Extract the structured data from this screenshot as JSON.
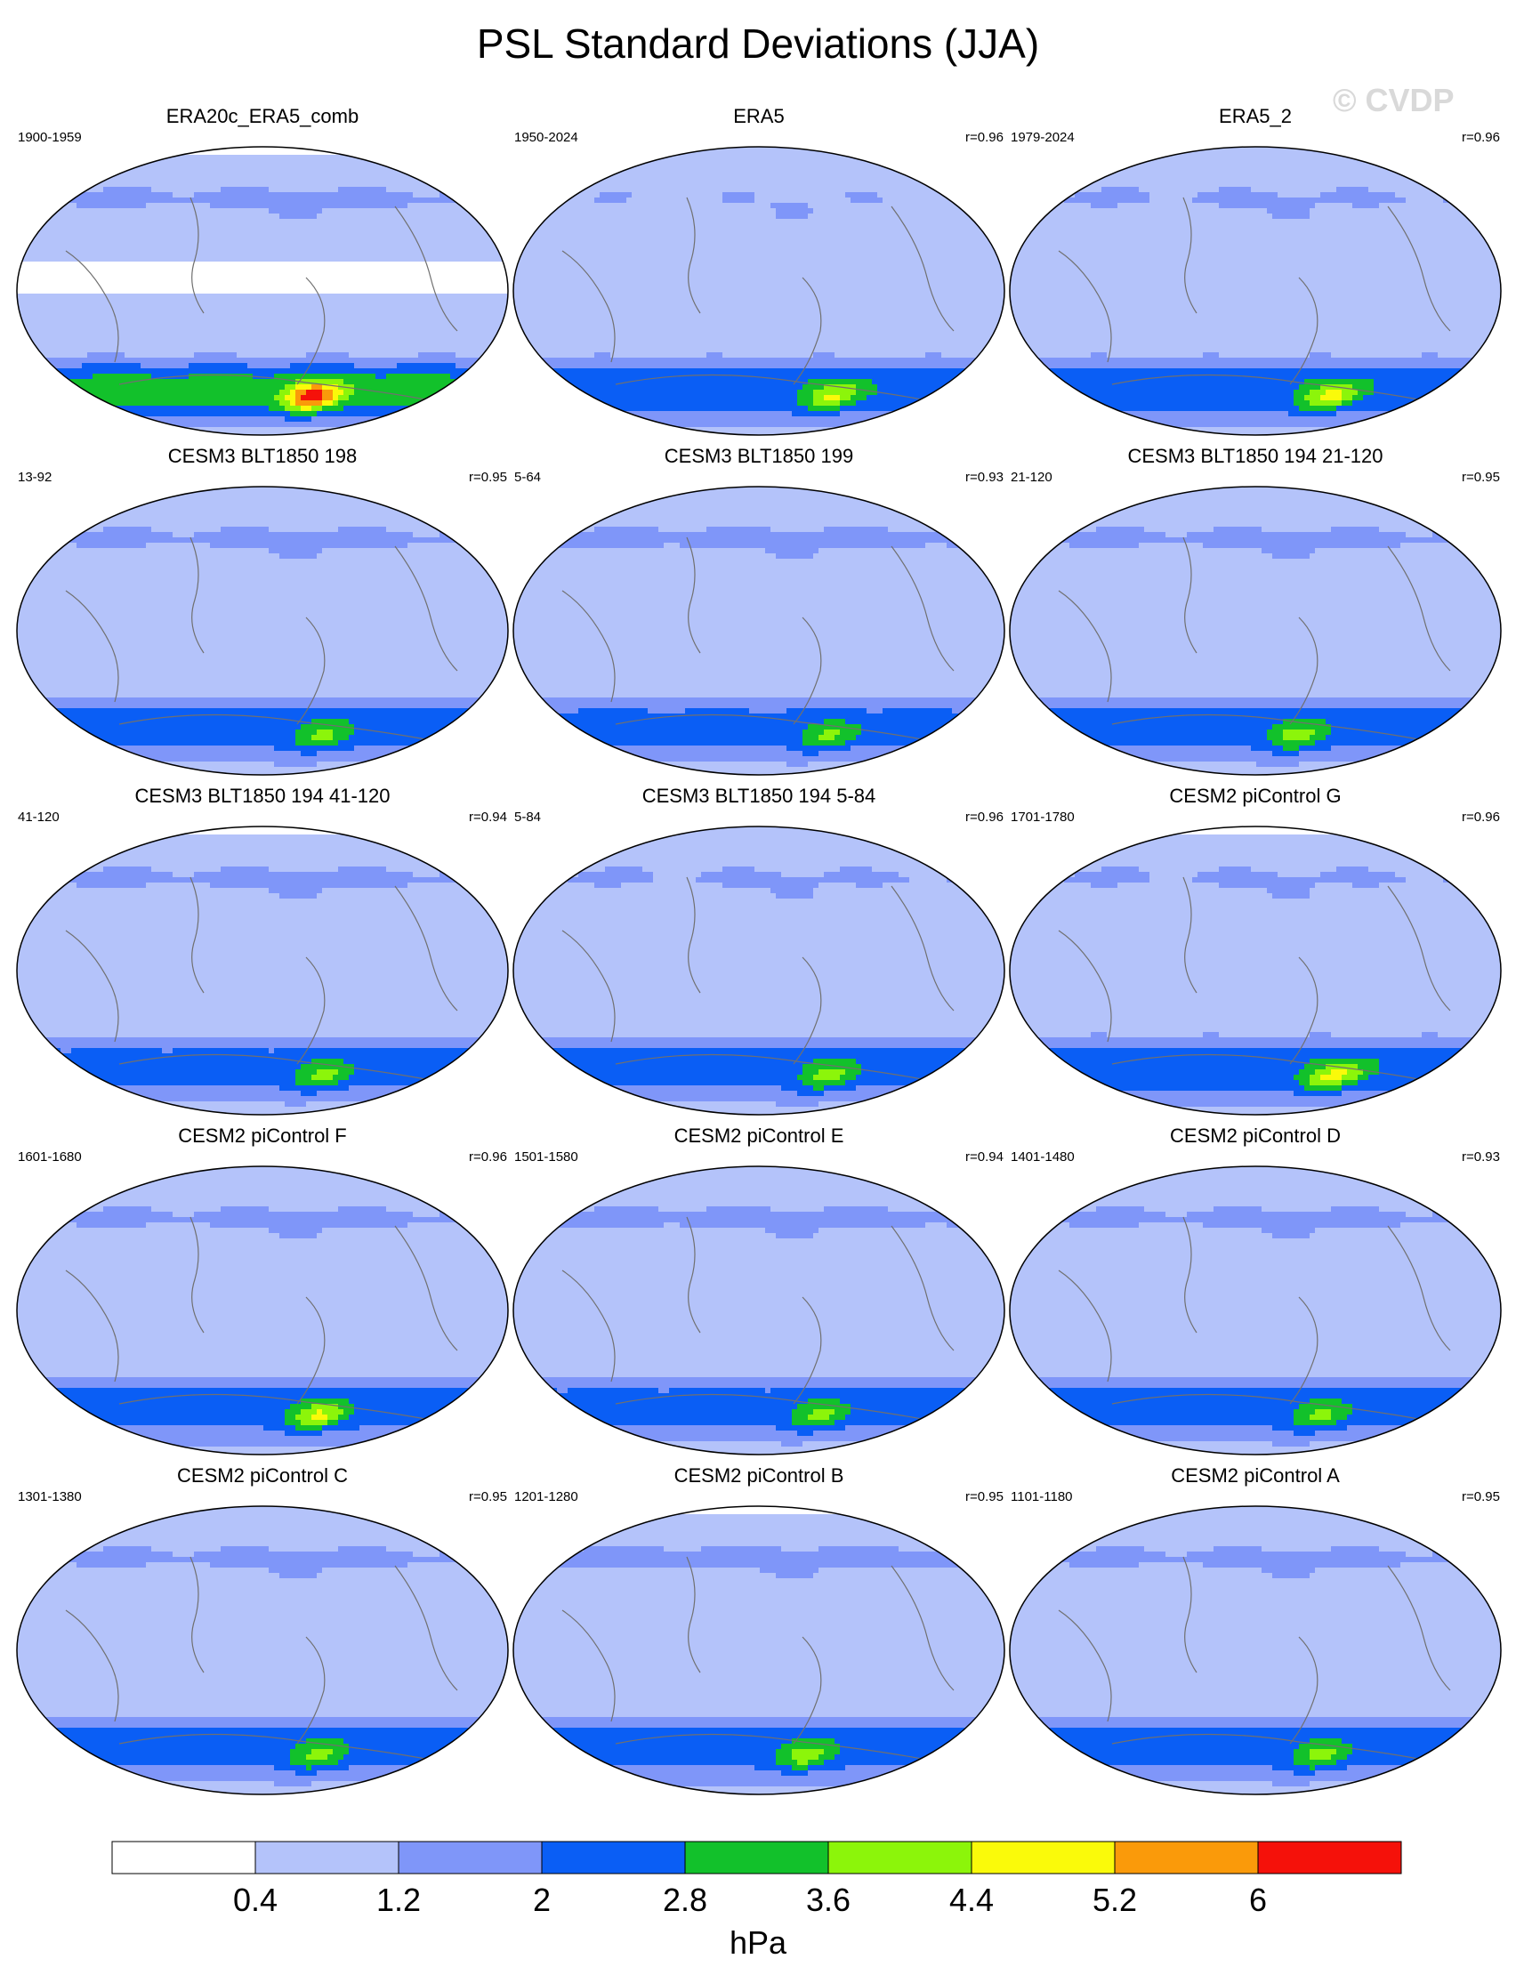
{
  "title": "PSL Standard Deviations (JJA)",
  "watermark": "© CVDP",
  "chart_data": {
    "type": "heatmap",
    "title": "PSL Standard Deviations (JJA)",
    "variable": "PSL standard deviation",
    "season": "JJA",
    "units": "hPa",
    "projection": "global map (Pacific-centered)",
    "colorbar": {
      "levels": [
        0.4,
        1.2,
        2,
        2.8,
        3.6,
        4.4,
        5.2,
        6
      ],
      "tick_labels": [
        "0.4",
        "1.2",
        "2",
        "2.8",
        "3.6",
        "4.4",
        "5.2",
        "6"
      ],
      "colors": [
        "#ffffff",
        "#b4c3fa",
        "#7f96f9",
        "#0a5ef5",
        "#12c12b",
        "#8cf50a",
        "#fafa0a",
        "#fa9a0a",
        "#f5110a"
      ],
      "label": "hPa"
    },
    "panels": [
      {
        "name": "ERA20c_ERA5_comb",
        "period": "1900-1959",
        "r": "",
        "spec": {
          "nh": 1.3,
          "np": 0.35,
          "trop": 0.1,
          "so": 1.35,
          "ant": 2.1,
          "hot": 3.5,
          "hlon": 205
        }
      },
      {
        "name": "ERA5",
        "period": "1950-2024",
        "r": "r=0.96",
        "spec": {
          "nh": 1.15,
          "np": 0.85,
          "trop": 0.5,
          "so": 1.2,
          "ant": 1.5,
          "hot": 2.1,
          "hlon": 230
        }
      },
      {
        "name": "ERA5_2",
        "period": "1979-2024",
        "r": "r=0.96",
        "spec": {
          "nh": 1.25,
          "np": 0.9,
          "trop": 0.55,
          "so": 1.2,
          "ant": 1.5,
          "hot": 2.3,
          "hlon": 230
        }
      },
      {
        "name": "CESM3 BLT1850 198",
        "period": "13-92",
        "r": "r=0.95",
        "spec": {
          "nh": 1.3,
          "np": 0.6,
          "trop": 0.45,
          "so": 1.15,
          "ant": 1.3,
          "hot": 1.6,
          "hlon": 215
        }
      },
      {
        "name": "CESM3 BLT1850 199",
        "period": "5-64",
        "r": "r=0.93",
        "spec": {
          "nh": 1.35,
          "np": 0.6,
          "trop": 0.45,
          "so": 1.05,
          "ant": 1.25,
          "hot": 1.6,
          "hlon": 225
        }
      },
      {
        "name": "CESM3 BLT1850 194 21-120",
        "period": "21-120",
        "r": "r=0.95",
        "spec": {
          "nh": 1.3,
          "np": 0.6,
          "trop": 0.45,
          "so": 1.1,
          "ant": 1.3,
          "hot": 1.8,
          "hlon": 195
        }
      },
      {
        "name": "CESM3 BLT1850 194 41-120",
        "period": "41-120",
        "r": "r=0.94",
        "spec": {
          "nh": 1.3,
          "np": 0.3,
          "trop": 0.45,
          "so": 1.1,
          "ant": 1.25,
          "hot": 1.7,
          "hlon": 215
        }
      },
      {
        "name": "CESM3 BLT1850 194 5-84",
        "period": "5-84",
        "r": "r=0.96",
        "spec": {
          "nh": 1.25,
          "np": 0.5,
          "trop": 0.45,
          "so": 1.15,
          "ant": 1.3,
          "hot": 1.8,
          "hlon": 225
        }
      },
      {
        "name": "CESM2 piControl G",
        "period": "1701-1780",
        "r": "r=0.96",
        "spec": {
          "nh": 1.25,
          "np": 0.3,
          "trop": 0.45,
          "so": 1.2,
          "ant": 1.5,
          "hot": 2.3,
          "hlon": 235
        }
      },
      {
        "name": "CESM2 piControl F",
        "period": "1601-1680",
        "r": "r=0.96",
        "spec": {
          "nh": 1.3,
          "np": 0.5,
          "trop": 0.5,
          "so": 1.1,
          "ant": 1.35,
          "hot": 2.3,
          "hlon": 210
        }
      },
      {
        "name": "CESM2 piControl E",
        "period": "1501-1580",
        "r": "r=0.94",
        "spec": {
          "nh": 1.35,
          "np": 0.4,
          "trop": 0.45,
          "so": 1.1,
          "ant": 1.25,
          "hot": 1.7,
          "hlon": 215
        }
      },
      {
        "name": "CESM2 piControl D",
        "period": "1401-1480",
        "r": "r=0.93",
        "spec": {
          "nh": 1.3,
          "np": 0.5,
          "trop": 0.5,
          "so": 1.1,
          "ant": 1.3,
          "hot": 1.6,
          "hlon": 220
        }
      },
      {
        "name": "CESM2 piControl C",
        "period": "1301-1380",
        "r": "r=0.95",
        "spec": {
          "nh": 1.3,
          "np": 0.6,
          "trop": 0.45,
          "so": 1.1,
          "ant": 1.3,
          "hot": 1.7,
          "hlon": 210
        }
      },
      {
        "name": "CESM2 piControl B",
        "period": "1201-1280",
        "r": "r=0.95",
        "spec": {
          "nh": 1.4,
          "np": 0.3,
          "trop": 0.45,
          "so": 1.1,
          "ant": 1.35,
          "hot": 1.8,
          "hlon": 200
        }
      },
      {
        "name": "CESM2 piControl A",
        "period": "1101-1180",
        "r": "r=0.95",
        "spec": {
          "nh": 1.3,
          "np": 0.6,
          "trop": 0.45,
          "so": 1.1,
          "ant": 1.3,
          "hot": 1.7,
          "hlon": 220
        }
      }
    ]
  }
}
